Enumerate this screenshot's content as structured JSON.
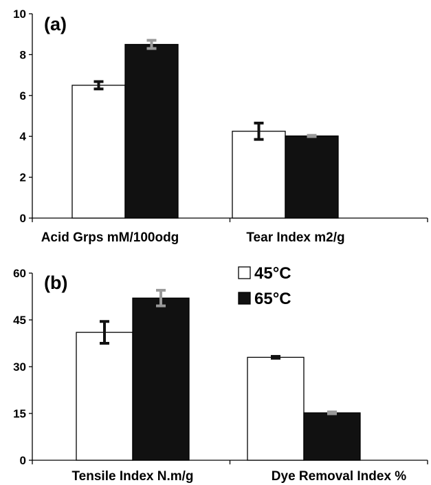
{
  "chart_data": [
    {
      "type": "bar",
      "panel_label": "(a)",
      "categories": [
        "Acid Grps mM/100odg",
        "Tear Index m2/g"
      ],
      "series": [
        {
          "name": "45°C",
          "color": "#ffffff",
          "values": [
            6.5,
            4.25
          ],
          "errors": [
            0.18,
            0.4
          ]
        },
        {
          "name": "65°C",
          "color": "#111111",
          "values": [
            8.5,
            4.02
          ],
          "errors": [
            0.2,
            0.03
          ]
        }
      ],
      "error_bar_colors": {
        "45°C": "#111111",
        "65°C": "#999999"
      },
      "ylim": [
        0,
        10
      ],
      "yticks": [
        "0",
        "2",
        "4",
        "6",
        "8",
        "10"
      ],
      "legend": "none"
    },
    {
      "type": "bar",
      "panel_label": "(b)",
      "categories": [
        "Tensile Index N.m/g",
        "Dye Removal Index %"
      ],
      "series": [
        {
          "name": "45°C",
          "color": "#ffffff",
          "values": [
            41,
            33
          ],
          "errors": [
            3.5,
            0.3
          ]
        },
        {
          "name": "65°C",
          "color": "#111111",
          "values": [
            52,
            15.2
          ],
          "errors": [
            2.5,
            0.3
          ]
        }
      ],
      "error_bar_colors": {
        "45°C": "#111111",
        "65°C": "#999999"
      },
      "ylim": [
        0,
        60
      ],
      "yticks": [
        "0",
        "15",
        "30",
        "45",
        "60"
      ],
      "legend": "top-center"
    }
  ]
}
